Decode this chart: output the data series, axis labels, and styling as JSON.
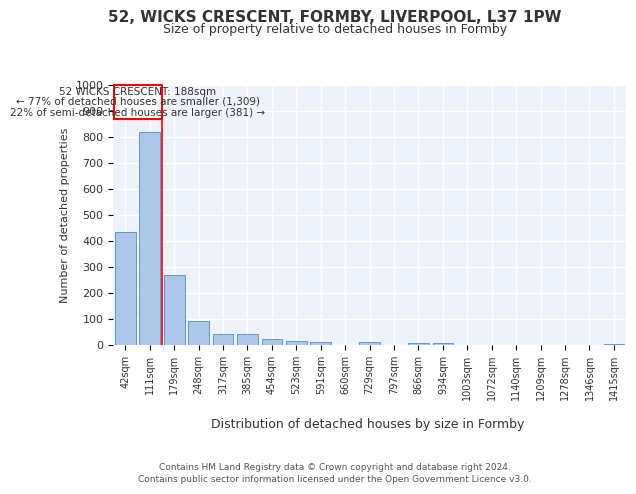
{
  "title_line1": "52, WICKS CRESCENT, FORMBY, LIVERPOOL, L37 1PW",
  "title_line2": "Size of property relative to detached houses in Formby",
  "xlabel": "Distribution of detached houses by size in Formby",
  "ylabel": "Number of detached properties",
  "categories": [
    "42sqm",
    "111sqm",
    "179sqm",
    "248sqm",
    "317sqm",
    "385sqm",
    "454sqm",
    "523sqm",
    "591sqm",
    "660sqm",
    "729sqm",
    "797sqm",
    "866sqm",
    "934sqm",
    "1003sqm",
    "1072sqm",
    "1140sqm",
    "1209sqm",
    "1278sqm",
    "1346sqm",
    "1415sqm"
  ],
  "values": [
    435,
    820,
    268,
    92,
    44,
    44,
    22,
    16,
    11,
    0,
    11,
    0,
    9,
    9,
    0,
    0,
    0,
    0,
    0,
    0,
    5
  ],
  "bar_color": "#aec6e8",
  "bar_edge_color": "#5b9bd5",
  "annotation_box_title": "52 WICKS CRESCENT: 188sqm",
  "annotation_line1": "← 77% of detached houses are smaller (1,309)",
  "annotation_line2": "22% of semi-detached houses are larger (381) →",
  "ylim": [
    0,
    1000
  ],
  "yticks": [
    0,
    100,
    200,
    300,
    400,
    500,
    600,
    700,
    800,
    900,
    1000
  ],
  "background_color": "#ffffff",
  "plot_bg_color": "#eef2fa",
  "grid_color": "#ffffff",
  "footnote_line1": "Contains HM Land Registry data © Crown copyright and database right 2024.",
  "footnote_line2": "Contains public sector information licensed under the Open Government Licence v3.0."
}
